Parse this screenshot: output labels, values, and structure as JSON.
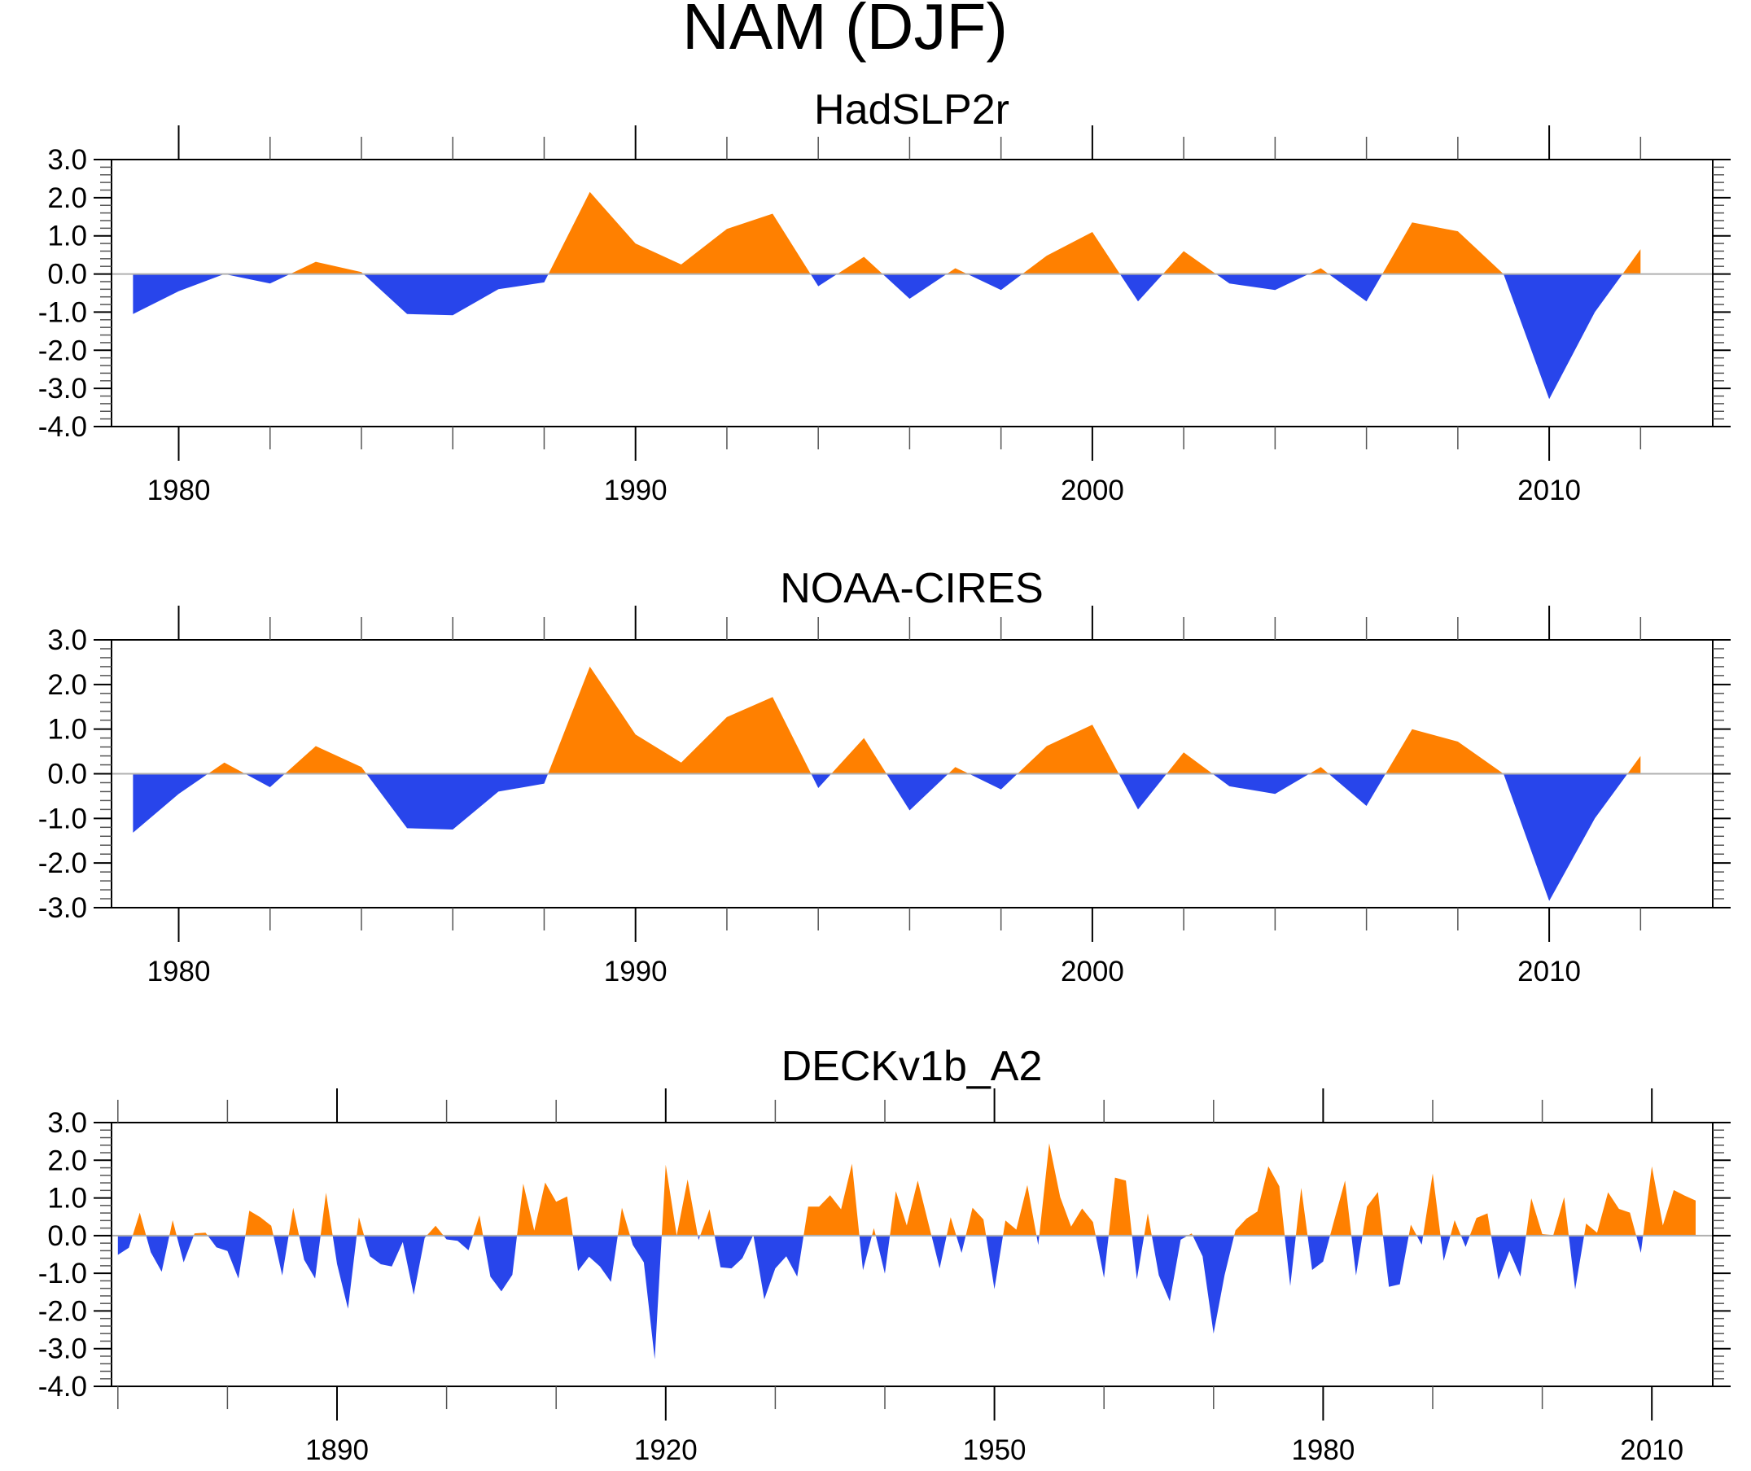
{
  "figure_title": "NAM (DJF)",
  "colors": {
    "positive": "#ff8000",
    "negative": "#2845eb",
    "zero_line": "#b0b0b0"
  },
  "chart_data": [
    {
      "type": "area",
      "title": "HadSLP2r",
      "xlabel": "",
      "ylabel": "",
      "xlim": [
        1978,
        2014
      ],
      "ylim": [
        -4,
        3
      ],
      "xticks": [
        1980,
        1990,
        2000,
        2010
      ],
      "xtick_labels": [
        "1980",
        "1990",
        "2000",
        "2010"
      ],
      "yticks": [
        -4,
        -3,
        -2,
        -1,
        0,
        1,
        2,
        3
      ],
      "ytick_labels": [
        "-4.0",
        "-3.0",
        "-2.0",
        "-1.0",
        "0.0",
        "1.0",
        "2.0",
        "3.0"
      ],
      "grid": false,
      "x": [
        1979,
        1980,
        1981,
        1982,
        1983,
        1984,
        1985,
        1986,
        1987,
        1988,
        1989,
        1990,
        1991,
        1992,
        1993,
        1994,
        1995,
        1996,
        1997,
        1998,
        1999,
        2000,
        2001,
        2002,
        2003,
        2004,
        2005,
        2006,
        2007,
        2008,
        2009,
        2010,
        2011,
        2012
      ],
      "values": [
        -1.05,
        -0.45,
        0.0,
        -0.25,
        0.32,
        0.05,
        -1.05,
        -1.08,
        -0.4,
        -0.22,
        2.15,
        0.8,
        0.25,
        1.18,
        1.58,
        -0.32,
        0.45,
        -0.65,
        0.15,
        -0.42,
        0.48,
        1.1,
        -0.72,
        0.6,
        -0.25,
        -0.42,
        0.15,
        -0.72,
        1.35,
        1.12,
        0.0,
        -3.28,
        -1.0,
        0.65
      ]
    },
    {
      "type": "area",
      "title": "NOAA-CIRES",
      "xlabel": "",
      "ylabel": "",
      "xlim": [
        1978,
        2014
      ],
      "ylim": [
        -3,
        3
      ],
      "xticks": [
        1980,
        1990,
        2000,
        2010
      ],
      "xtick_labels": [
        "1980",
        "1990",
        "2000",
        "2010"
      ],
      "yticks": [
        -3,
        -2,
        -1,
        0,
        1,
        2,
        3
      ],
      "ytick_labels": [
        "-3.0",
        "-2.0",
        "-1.0",
        "0.0",
        "1.0",
        "2.0",
        "3.0"
      ],
      "grid": false,
      "x": [
        1979,
        1980,
        1981,
        1982,
        1983,
        1984,
        1985,
        1986,
        1987,
        1988,
        1989,
        1990,
        1991,
        1992,
        1993,
        1994,
        1995,
        1996,
        1997,
        1998,
        1999,
        2000,
        2001,
        2002,
        2003,
        2004,
        2005,
        2006,
        2007,
        2008,
        2009,
        2010,
        2011,
        2012
      ],
      "values": [
        -1.32,
        -0.45,
        0.25,
        -0.3,
        0.62,
        0.15,
        -1.22,
        -1.25,
        -0.4,
        -0.22,
        2.4,
        0.88,
        0.25,
        1.27,
        1.72,
        -0.32,
        0.8,
        -0.82,
        0.15,
        -0.35,
        0.62,
        1.1,
        -0.8,
        0.48,
        -0.28,
        -0.45,
        0.15,
        -0.72,
        1.0,
        0.72,
        0.0,
        -2.85,
        -1.0,
        0.4
      ]
    },
    {
      "type": "area",
      "title": "DECKv1b_A2",
      "xlabel": "",
      "ylabel": "",
      "xlim": [
        1869.8,
        2016.3
      ],
      "ylim": [
        -4,
        3
      ],
      "xticks": [
        1890,
        1920,
        1950,
        1980,
        2010
      ],
      "xtick_labels": [
        "1890",
        "1920",
        "1950",
        "1980",
        "2010"
      ],
      "yticks": [
        -4,
        -3,
        -2,
        -1,
        0,
        1,
        2,
        3
      ],
      "ytick_labels": [
        "-4.0",
        "-3.0",
        "-2.0",
        "-1.0",
        "0.0",
        "1.0",
        "2.0",
        "3.0"
      ],
      "grid": false,
      "x_start": 1870,
      "values": [
        -0.51,
        -0.32,
        0.61,
        -0.44,
        -0.96,
        0.41,
        -0.71,
        0.06,
        0.08,
        -0.31,
        -0.41,
        -1.14,
        0.66,
        0.49,
        0.26,
        -1.06,
        0.74,
        -0.64,
        -1.14,
        1.14,
        -0.75,
        -1.94,
        0.49,
        -0.55,
        -0.76,
        -0.82,
        -0.17,
        -1.57,
        -0.06,
        0.26,
        -0.1,
        -0.14,
        -0.39,
        0.54,
        -1.09,
        -1.48,
        -1.04,
        1.38,
        0.13,
        1.41,
        0.9,
        1.04,
        -0.94,
        -0.56,
        -0.82,
        -1.23,
        0.74,
        -0.25,
        -0.71,
        -3.28,
        1.88,
        0.0,
        1.49,
        -0.12,
        0.7,
        -0.84,
        -0.87,
        -0.6,
        0.02,
        -1.69,
        -0.87,
        -0.55,
        -1.09,
        0.77,
        0.77,
        1.07,
        0.7,
        1.91,
        -0.92,
        0.2,
        -1.01,
        1.18,
        0.27,
        1.46,
        0.3,
        -0.87,
        0.49,
        -0.46,
        0.74,
        0.43,
        -1.42,
        0.4,
        0.16,
        1.34,
        -0.25,
        2.45,
        1.02,
        0.24,
        0.72,
        0.36,
        -1.12,
        1.54,
        1.46,
        -1.16,
        0.59,
        -1.05,
        -1.74,
        -0.11,
        0.06,
        -0.55,
        -2.6,
        -1.05,
        0.14,
        0.45,
        0.64,
        1.84,
        1.31,
        -1.34,
        1.27,
        -0.91,
        -0.69,
        0.4,
        1.46,
        -1.06,
        0.77,
        1.16,
        -1.36,
        -1.29,
        0.29,
        -0.24,
        1.65,
        -0.67,
        0.41,
        -0.3,
        0.47,
        0.59,
        -1.17,
        -0.41,
        -1.09,
        0.99,
        0.04,
        0.01,
        1.02,
        -1.43,
        0.32,
        0.08,
        1.15,
        0.71,
        0.61,
        -0.46,
        1.84,
        0.27,
        1.21,
        1.06,
        0.93
      ]
    }
  ]
}
